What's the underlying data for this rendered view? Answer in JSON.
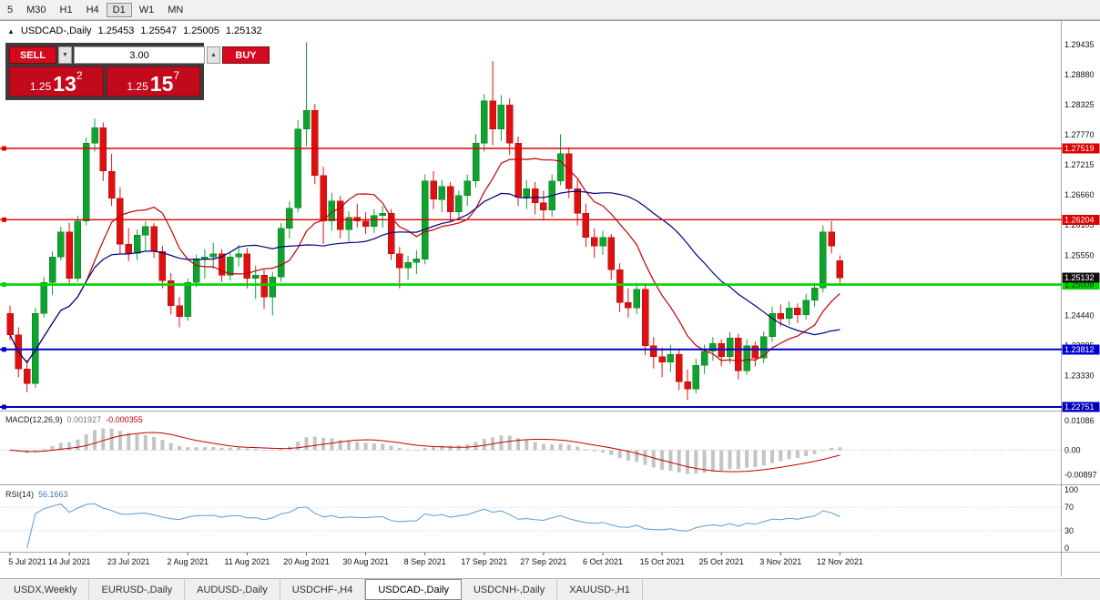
{
  "toolbar": {
    "timeframes": [
      "5",
      "M30",
      "H1",
      "H4",
      "D1",
      "W1",
      "MN"
    ],
    "active": "D1"
  },
  "chart_header": {
    "collapse": "▲",
    "symbol": "USDCAD-,Daily",
    "open": "1.25453",
    "high": "1.25547",
    "low": "1.25005",
    "close": "1.25132"
  },
  "one_click": {
    "sell_label": "SELL",
    "buy_label": "BUY",
    "volume": "3.00",
    "down_glyph": "▼",
    "up_glyph": "▲",
    "sell_price": {
      "prefix": "1.25",
      "big": "13",
      "sup": "2"
    },
    "buy_price": {
      "prefix": "1.25",
      "big": "15",
      "sup": "7"
    }
  },
  "levels": [
    {
      "price": 1.27519,
      "label": "1.27519",
      "color": "#dd0000",
      "width": 1.4,
      "badge_fg": "#ffffff"
    },
    {
      "price": 1.26204,
      "label": "1.26204",
      "color": "#dd0000",
      "width": 1.4,
      "badge_fg": "#ffffff"
    },
    {
      "price": 1.25008,
      "label": "1.25008",
      "color": "#00d400",
      "width": 2.6,
      "badge_fg": "#003300"
    },
    {
      "price": 1.23812,
      "label": "1.23812",
      "color": "#0000cc",
      "width": 2.0,
      "badge_fg": "#ffffff"
    },
    {
      "price": 1.22751,
      "label": "1.22751",
      "color": "#0000bb",
      "width": 2.0,
      "badge_fg": "#ffffff"
    }
  ],
  "current_price": {
    "price": 1.25132,
    "label": "1.25132",
    "color": "#111111",
    "badge_fg": "#ffffff"
  },
  "right_axis": [
    {
      "v": 1.29435,
      "t": "1.29435"
    },
    {
      "v": 1.2888,
      "t": "1.28880"
    },
    {
      "v": 1.28325,
      "t": "1.28325"
    },
    {
      "v": 1.2777,
      "t": "1.27770"
    },
    {
      "v": 1.27215,
      "t": "1.27215"
    },
    {
      "v": 1.2666,
      "t": "1.26660"
    },
    {
      "v": 1.26105,
      "t": "1.26105"
    },
    {
      "v": 1.2555,
      "t": "1.25550"
    },
    {
      "v": 1.24995,
      "t": "1.24995"
    },
    {
      "v": 1.2444,
      "t": "1.24440"
    },
    {
      "v": 1.23885,
      "t": "1.23885"
    },
    {
      "v": 1.2333,
      "t": "1.23330"
    },
    {
      "v": 1.22775,
      "t": "1.22775"
    }
  ],
  "macd": {
    "label": "MACD(12,26,9)",
    "value_main": "0.001927",
    "value_signal": "-0.000355",
    "range": [
      -0.0122,
      0.0138
    ],
    "axis": [
      {
        "v": 0.01086,
        "t": "0.01086"
      },
      {
        "v": 0,
        "t": "0.00"
      },
      {
        "v": -0.00897,
        "t": "-0.00897"
      }
    ]
  },
  "rsi": {
    "label": "RSI(14)",
    "value": "56.1663",
    "levels": [
      70,
      30
    ],
    "axis": [
      {
        "v": 100,
        "t": "100"
      },
      {
        "v": 70,
        "t": "70"
      },
      {
        "v": 30,
        "t": "30"
      },
      {
        "v": 0,
        "t": "0"
      }
    ]
  },
  "tabs": {
    "active_index": 4,
    "items": [
      {
        "label": "USDX,Weekly"
      },
      {
        "label": "EURUSD-,Daily"
      },
      {
        "label": "AUDUSD-,Daily"
      },
      {
        "label": "USDCHF-,H4"
      },
      {
        "label": "USDCAD-,Daily"
      },
      {
        "label": "USDCNH-,Daily"
      },
      {
        "label": "XAUUSD-,H1"
      }
    ]
  },
  "chart_data": {
    "type": "candlestick",
    "title": "USDCAD-,Daily",
    "y_range": [
      1.227,
      1.2982
    ],
    "x_labels": [
      {
        "i": 0,
        "t": "5 Jul 2021"
      },
      {
        "i": 7,
        "t": "14 Jul 2021"
      },
      {
        "i": 14,
        "t": "23 Jul 2021"
      },
      {
        "i": 21,
        "t": "2 Aug 2021"
      },
      {
        "i": 28,
        "t": "11 Aug 2021"
      },
      {
        "i": 35,
        "t": "20 Aug 2021"
      },
      {
        "i": 42,
        "t": "30 Aug 2021"
      },
      {
        "i": 49,
        "t": "8 Sep 2021"
      },
      {
        "i": 56,
        "t": "17 Sep 2021"
      },
      {
        "i": 63,
        "t": "27 Sep 2021"
      },
      {
        "i": 70,
        "t": "6 Oct 2021"
      },
      {
        "i": 77,
        "t": "15 Oct 2021"
      },
      {
        "i": 84,
        "t": "25 Oct 2021"
      },
      {
        "i": 91,
        "t": "3 Nov 2021"
      },
      {
        "i": 98,
        "t": "12 Nov 2021"
      }
    ],
    "candles": [
      [
        1.2448,
        1.2462,
        1.2398,
        1.2408
      ],
      [
        1.2408,
        1.2422,
        1.233,
        1.2345
      ],
      [
        1.2345,
        1.2362,
        1.2302,
        1.2318
      ],
      [
        1.2318,
        1.2458,
        1.231,
        1.2448
      ],
      [
        1.2448,
        1.2515,
        1.244,
        1.2505
      ],
      [
        1.2505,
        1.2562,
        1.2482,
        1.2552
      ],
      [
        1.2552,
        1.2608,
        1.2545,
        1.2598
      ],
      [
        1.2598,
        1.2615,
        1.2502,
        1.2512
      ],
      [
        1.2512,
        1.2628,
        1.2506,
        1.2618
      ],
      [
        1.2618,
        1.2772,
        1.261,
        1.2762
      ],
      [
        1.2762,
        1.2807,
        1.2746,
        1.279
      ],
      [
        1.279,
        1.28,
        1.2692,
        1.271
      ],
      [
        1.271,
        1.2742,
        1.2646,
        1.266
      ],
      [
        1.266,
        1.268,
        1.2558,
        1.2575
      ],
      [
        1.2575,
        1.2605,
        1.2544,
        1.2558
      ],
      [
        1.2558,
        1.2602,
        1.2546,
        1.2592
      ],
      [
        1.2592,
        1.2618,
        1.2564,
        1.2608
      ],
      [
        1.2608,
        1.2614,
        1.255,
        1.2562
      ],
      [
        1.2562,
        1.2572,
        1.2494,
        1.2508
      ],
      [
        1.2508,
        1.2522,
        1.2446,
        1.2462
      ],
      [
        1.2462,
        1.2478,
        1.2422,
        1.2442
      ],
      [
        1.2442,
        1.2512,
        1.2434,
        1.2505
      ],
      [
        1.2505,
        1.2556,
        1.2496,
        1.2548
      ],
      [
        1.2548,
        1.2566,
        1.2512,
        1.2552
      ],
      [
        1.2552,
        1.2578,
        1.253,
        1.2558
      ],
      [
        1.2558,
        1.2566,
        1.2506,
        1.2518
      ],
      [
        1.2518,
        1.256,
        1.2508,
        1.2552
      ],
      [
        1.2552,
        1.2574,
        1.2534,
        1.2558
      ],
      [
        1.2558,
        1.2568,
        1.2494,
        1.2512
      ],
      [
        1.2512,
        1.2536,
        1.2474,
        1.2518
      ],
      [
        1.2518,
        1.2528,
        1.2456,
        1.2478
      ],
      [
        1.2478,
        1.2524,
        1.2444,
        1.2515
      ],
      [
        1.2515,
        1.2614,
        1.2506,
        1.2605
      ],
      [
        1.2605,
        1.2654,
        1.2586,
        1.2642
      ],
      [
        1.2642,
        1.2804,
        1.2634,
        1.2788
      ],
      [
        1.2788,
        1.2948,
        1.2756,
        1.2822
      ],
      [
        1.2822,
        1.2834,
        1.2686,
        1.2702
      ],
      [
        1.2702,
        1.2718,
        1.2576,
        1.2618
      ],
      [
        1.2618,
        1.267,
        1.26,
        1.2655
      ],
      [
        1.2655,
        1.2664,
        1.2586,
        1.2602
      ],
      [
        1.2602,
        1.2636,
        1.258,
        1.2625
      ],
      [
        1.2625,
        1.265,
        1.2606,
        1.2618
      ],
      [
        1.2618,
        1.2634,
        1.2594,
        1.2608
      ],
      [
        1.2608,
        1.264,
        1.2596,
        1.2628
      ],
      [
        1.2628,
        1.2646,
        1.2606,
        1.2632
      ],
      [
        1.2632,
        1.264,
        1.2546,
        1.2558
      ],
      [
        1.2558,
        1.257,
        1.2494,
        1.2532
      ],
      [
        1.2532,
        1.2554,
        1.251,
        1.2542
      ],
      [
        1.2542,
        1.2564,
        1.252,
        1.2548
      ],
      [
        1.2548,
        1.2704,
        1.2538,
        1.2692
      ],
      [
        1.2692,
        1.271,
        1.264,
        1.2658
      ],
      [
        1.2658,
        1.2694,
        1.2634,
        1.2682
      ],
      [
        1.2682,
        1.269,
        1.2616,
        1.2635
      ],
      [
        1.2635,
        1.2674,
        1.262,
        1.2665
      ],
      [
        1.2665,
        1.2704,
        1.2646,
        1.2692
      ],
      [
        1.2692,
        1.2778,
        1.268,
        1.2762
      ],
      [
        1.2762,
        1.2852,
        1.2746,
        1.284
      ],
      [
        1.284,
        1.2913,
        1.2758,
        1.2788
      ],
      [
        1.2788,
        1.285,
        1.2766,
        1.2832
      ],
      [
        1.2832,
        1.2844,
        1.274,
        1.2762
      ],
      [
        1.2762,
        1.2774,
        1.2646,
        1.2662
      ],
      [
        1.2662,
        1.2694,
        1.264,
        1.2678
      ],
      [
        1.2678,
        1.269,
        1.263,
        1.2652
      ],
      [
        1.2652,
        1.2674,
        1.262,
        1.2638
      ],
      [
        1.2638,
        1.2704,
        1.2626,
        1.2692
      ],
      [
        1.2692,
        1.2778,
        1.2684,
        1.2742
      ],
      [
        1.2742,
        1.2754,
        1.266,
        1.2678
      ],
      [
        1.2678,
        1.2694,
        1.261,
        1.2632
      ],
      [
        1.2632,
        1.265,
        1.257,
        1.2588
      ],
      [
        1.2588,
        1.2604,
        1.255,
        1.2572
      ],
      [
        1.2572,
        1.26,
        1.2556,
        1.2588
      ],
      [
        1.2588,
        1.2594,
        1.251,
        1.2528
      ],
      [
        1.2528,
        1.254,
        1.245,
        1.2468
      ],
      [
        1.2468,
        1.2494,
        1.244,
        1.2458
      ],
      [
        1.2458,
        1.2504,
        1.2446,
        1.2492
      ],
      [
        1.2492,
        1.25,
        1.237,
        1.2388
      ],
      [
        1.2388,
        1.2404,
        1.2346,
        1.2368
      ],
      [
        1.2368,
        1.2384,
        1.233,
        1.2358
      ],
      [
        1.2358,
        1.239,
        1.234,
        1.2372
      ],
      [
        1.2372,
        1.238,
        1.2306,
        1.2322
      ],
      [
        1.2322,
        1.2344,
        1.2288,
        1.2308
      ],
      [
        1.2308,
        1.2364,
        1.23,
        1.2352
      ],
      [
        1.2352,
        1.239,
        1.2336,
        1.2378
      ],
      [
        1.2378,
        1.2404,
        1.236,
        1.2392
      ],
      [
        1.2392,
        1.24,
        1.235,
        1.2368
      ],
      [
        1.2368,
        1.2414,
        1.2356,
        1.2402
      ],
      [
        1.2402,
        1.241,
        1.2326,
        1.2342
      ],
      [
        1.2342,
        1.24,
        1.2334,
        1.2388
      ],
      [
        1.2388,
        1.2396,
        1.235,
        1.2365
      ],
      [
        1.2365,
        1.2414,
        1.2356,
        1.2405
      ],
      [
        1.2405,
        1.246,
        1.2396,
        1.2448
      ],
      [
        1.2448,
        1.2464,
        1.2424,
        1.2438
      ],
      [
        1.2438,
        1.247,
        1.2426,
        1.2458
      ],
      [
        1.2458,
        1.2466,
        1.243,
        1.2445
      ],
      [
        1.2445,
        1.2484,
        1.2436,
        1.2472
      ],
      [
        1.2472,
        1.2504,
        1.246,
        1.2495
      ],
      [
        1.2495,
        1.261,
        1.2486,
        1.2598
      ],
      [
        1.2598,
        1.2618,
        1.2558,
        1.2572
      ],
      [
        1.25453,
        1.25547,
        1.25005,
        1.25132
      ]
    ],
    "colors": {
      "bull": "#0ea32e",
      "bear": "#e01010",
      "ma_fast": "#c00000",
      "ma_slow": "#000080",
      "macd_hist": "#c4c4c4",
      "macd_signal": "#c00000",
      "rsi_line": "#5b9bd5"
    }
  }
}
